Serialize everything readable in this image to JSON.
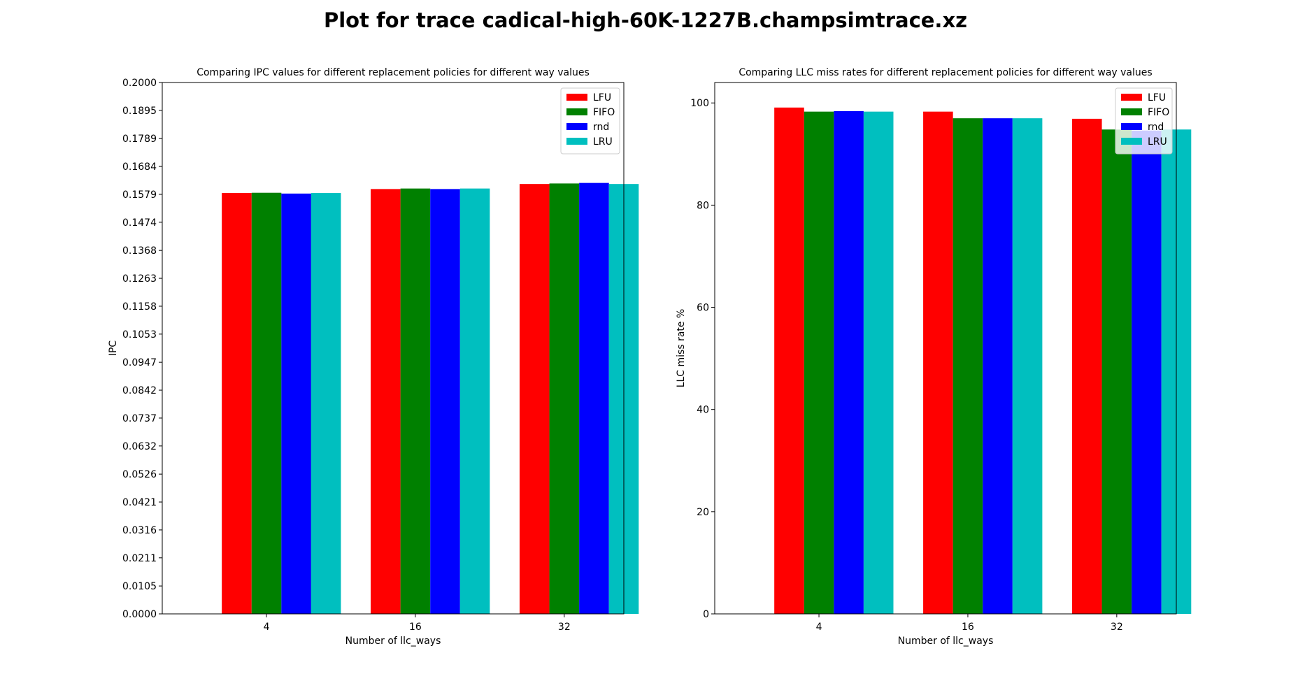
{
  "figure": {
    "title": "Plot for trace cadical-high-60K-1227B.champsimtrace.xz"
  },
  "chart_data": [
    {
      "type": "bar",
      "title": "Comparing IPC values for different replacement policies for different way values",
      "xlabel": "Number of llc_ways",
      "ylabel": "IPC",
      "categories": [
        "4",
        "16",
        "32"
      ],
      "ylim": [
        0,
        0.2
      ],
      "yticks": [
        "0.0000",
        "0.0105",
        "0.0211",
        "0.0316",
        "0.0421",
        "0.0526",
        "0.0632",
        "0.0737",
        "0.0842",
        "0.0947",
        "0.1053",
        "0.1158",
        "0.1263",
        "0.1368",
        "0.1474",
        "0.1579",
        "0.1684",
        "0.1789",
        "0.1895",
        "0.2000"
      ],
      "legend_position": "top-right",
      "grid": false,
      "series": [
        {
          "name": "LFU",
          "color": "#ff0000",
          "values": [
            0.1584,
            0.1599,
            0.1618
          ]
        },
        {
          "name": "FIFO",
          "color": "#008000",
          "values": [
            0.1585,
            0.1601,
            0.162
          ]
        },
        {
          "name": "rnd",
          "color": "#0000ff",
          "values": [
            0.1582,
            0.1599,
            0.1622
          ]
        },
        {
          "name": "LRU",
          "color": "#00bfbf",
          "values": [
            0.1584,
            0.1601,
            0.1618
          ]
        }
      ]
    },
    {
      "type": "bar",
      "title": "Comparing LLC miss rates for different replacement policies for different way values",
      "xlabel": "Number of llc_ways",
      "ylabel": "LLC miss rate %",
      "categories": [
        "4",
        "16",
        "32"
      ],
      "ylim": [
        0,
        104
      ],
      "yticks": [
        "0",
        "20",
        "40",
        "60",
        "80",
        "100"
      ],
      "legend_position": "top-right",
      "grid": false,
      "series": [
        {
          "name": "LFU",
          "color": "#ff0000",
          "values": [
            99.1,
            98.3,
            96.9
          ]
        },
        {
          "name": "FIFO",
          "color": "#008000",
          "values": [
            98.3,
            97.0,
            94.8
          ]
        },
        {
          "name": "rnd",
          "color": "#0000ff",
          "values": [
            98.4,
            97.0,
            94.6
          ]
        },
        {
          "name": "LRU",
          "color": "#00bfbf",
          "values": [
            98.3,
            97.0,
            94.8
          ]
        }
      ]
    }
  ]
}
